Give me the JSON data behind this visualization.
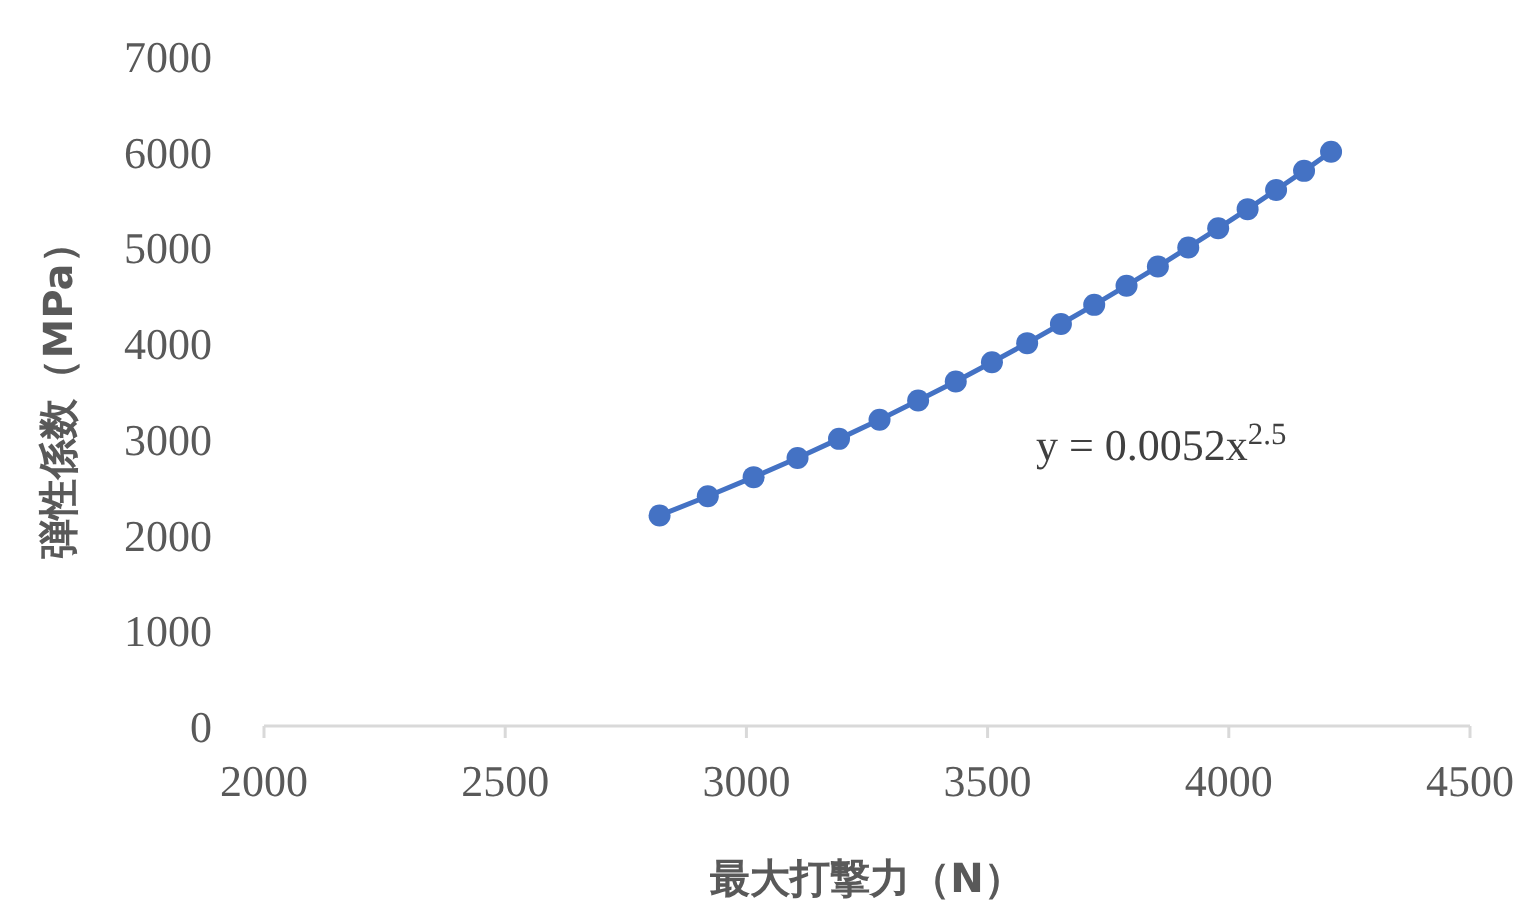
{
  "chart_data": {
    "type": "line",
    "xlabel": "最大打撃力（N）",
    "ylabel": "弾性係数（MPa）",
    "x": [
      2820,
      2920,
      3015,
      3106,
      3192,
      3276,
      3356,
      3434,
      3509,
      3582,
      3652,
      3721,
      3788,
      3853,
      3916,
      3978,
      4039,
      4098,
      4156,
      4212
    ],
    "series": [
      {
        "color": "#4472c4",
        "values": [
          2200,
          2400,
          2600,
          2800,
          3000,
          3200,
          3400,
          3600,
          3800,
          4000,
          4200,
          4400,
          4600,
          4800,
          5000,
          5200,
          5400,
          5600,
          5800,
          6000
        ]
      }
    ],
    "xlim": [
      2000,
      4500
    ],
    "xticks": [
      2000,
      2500,
      3000,
      3500,
      4000,
      4500
    ],
    "ylim": [
      0,
      7000
    ],
    "yticks": [
      0,
      1000,
      2000,
      3000,
      4000,
      5000,
      6000,
      7000
    ],
    "marker": "circle",
    "line_style": "solid",
    "annotations": [
      "y = 0.0052x$^{2.5}$"
    ]
  }
}
